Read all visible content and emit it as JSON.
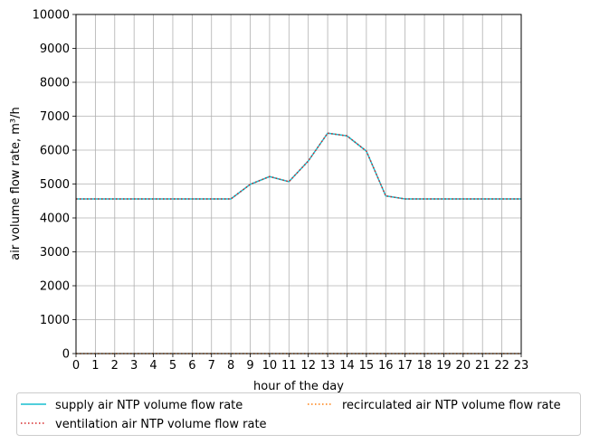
{
  "chart_data": {
    "type": "line",
    "title": "",
    "xlabel": "hour of the day",
    "ylabel": "air volume flow rate, m³/h",
    "xlim": [
      0,
      23
    ],
    "ylim": [
      0,
      10000
    ],
    "grid": true,
    "x_ticks": [
      "0",
      "1",
      "2",
      "3",
      "4",
      "5",
      "6",
      "7",
      "8",
      "9",
      "10",
      "11",
      "12",
      "13",
      "14",
      "15",
      "16",
      "17",
      "18",
      "19",
      "20",
      "21",
      "22",
      "23"
    ],
    "y_ticks": [
      "0",
      "1000",
      "2000",
      "3000",
      "4000",
      "5000",
      "6000",
      "7000",
      "8000",
      "9000",
      "10000"
    ],
    "x": [
      0,
      1,
      2,
      3,
      4,
      5,
      6,
      7,
      8,
      9,
      10,
      11,
      12,
      13,
      14,
      15,
      16,
      17,
      18,
      19,
      20,
      21,
      22,
      23
    ],
    "legend_position": "below",
    "series": [
      {
        "name": "supply air NTP volume flow rate",
        "style": "solid",
        "color": "#17becf",
        "values": [
          4560,
          4560,
          4560,
          4560,
          4560,
          4560,
          4560,
          4560,
          4560,
          4990,
          5220,
          5070,
          5680,
          6500,
          6420,
          5970,
          4650,
          4560,
          4560,
          4560,
          4560,
          4560,
          4560,
          4560
        ]
      },
      {
        "name": "ventilation air NTP volume flow rate",
        "style": "dotted",
        "color": "#d62728",
        "values": [
          4560,
          4560,
          4560,
          4560,
          4560,
          4560,
          4560,
          4560,
          4560,
          4990,
          5220,
          5070,
          5680,
          6500,
          6420,
          5970,
          4650,
          4560,
          4560,
          4560,
          4560,
          4560,
          4560,
          4560
        ]
      },
      {
        "name": "recirculated air NTP volume flow rate",
        "style": "dotted",
        "color": "#ff7f0e",
        "values": [
          0,
          0,
          0,
          0,
          0,
          0,
          0,
          0,
          0,
          0,
          0,
          0,
          0,
          0,
          0,
          0,
          0,
          0,
          0,
          0,
          0,
          0,
          0,
          0
        ]
      }
    ]
  }
}
